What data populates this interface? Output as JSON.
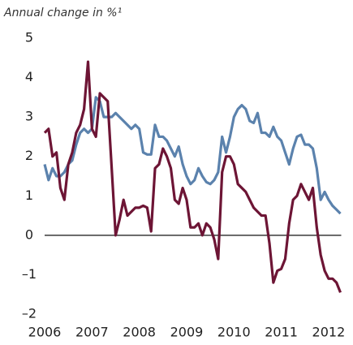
{
  "chart_data": {
    "type": "line",
    "title": "Annual change in %¹",
    "x": [
      2006,
      2006.083,
      2006.167,
      2006.25,
      2006.333,
      2006.417,
      2006.5,
      2006.583,
      2006.667,
      2006.75,
      2006.833,
      2006.917,
      2007,
      2007.083,
      2007.167,
      2007.25,
      2007.333,
      2007.417,
      2007.5,
      2007.583,
      2007.667,
      2007.75,
      2007.833,
      2007.917,
      2008,
      2008.083,
      2008.167,
      2008.25,
      2008.333,
      2008.417,
      2008.5,
      2008.583,
      2008.667,
      2008.75,
      2008.833,
      2008.917,
      2009,
      2009.083,
      2009.167,
      2009.25,
      2009.333,
      2009.417,
      2009.5,
      2009.583,
      2009.667,
      2009.75,
      2009.833,
      2009.917,
      2010,
      2010.083,
      2010.167,
      2010.25,
      2010.333,
      2010.417,
      2010.5,
      2010.583,
      2010.667,
      2010.75,
      2010.833,
      2010.917,
      2011,
      2011.083,
      2011.167,
      2011.25,
      2011.333,
      2011.417,
      2011.5,
      2011.583,
      2011.667,
      2011.75,
      2011.833,
      2011.917,
      2012,
      2012.083,
      2012.167,
      2012.25
    ],
    "series": [
      {
        "color": "#5b82ad",
        "values": [
          1.8,
          1.4,
          1.7,
          1.5,
          1.5,
          1.6,
          1.8,
          1.9,
          2.3,
          2.6,
          2.7,
          2.6,
          2.7,
          3.5,
          3.4,
          3.0,
          3.0,
          3.0,
          3.1,
          3.0,
          2.9,
          2.8,
          2.7,
          2.8,
          2.7,
          2.1,
          2.05,
          2.05,
          2.8,
          2.5,
          2.5,
          2.4,
          2.2,
          2.0,
          2.25,
          1.8,
          1.5,
          1.3,
          1.4,
          1.7,
          1.5,
          1.35,
          1.3,
          1.4,
          1.6,
          2.5,
          2.1,
          2.5,
          3.0,
          3.2,
          3.3,
          3.2,
          2.9,
          2.85,
          3.1,
          2.6,
          2.6,
          2.5,
          2.75,
          2.5,
          2.4,
          2.1,
          1.8,
          2.2,
          2.5,
          2.55,
          2.3,
          2.3,
          2.2,
          1.7,
          0.9,
          1.1,
          0.9,
          0.75,
          0.65,
          0.55
        ]
      },
      {
        "color": "#6d1535",
        "values": [
          2.6,
          2.7,
          2.0,
          2.1,
          1.2,
          0.9,
          1.8,
          2.1,
          2.6,
          2.8,
          3.2,
          4.4,
          2.7,
          2.5,
          3.6,
          3.5,
          3.4,
          1.7,
          0.0,
          0.4,
          0.9,
          0.5,
          0.6,
          0.7,
          0.7,
          0.75,
          0.7,
          0.1,
          1.7,
          1.8,
          2.2,
          2.0,
          1.7,
          0.9,
          0.8,
          1.2,
          0.9,
          0.2,
          0.2,
          0.3,
          0.0,
          0.3,
          0.2,
          -0.1,
          -0.6,
          1.6,
          2.0,
          2.0,
          1.8,
          1.3,
          1.2,
          1.1,
          0.9,
          0.7,
          0.6,
          0.5,
          0.5,
          -0.2,
          -1.2,
          -0.9,
          -0.85,
          -0.6,
          0.3,
          0.9,
          1.0,
          1.3,
          1.1,
          0.9,
          1.2,
          0.2,
          -0.5,
          -0.9,
          -1.1,
          -1.1,
          -1.2,
          -1.45
        ]
      }
    ],
    "xlim": [
      2006,
      2012.25
    ],
    "xticks": [
      2006,
      2007,
      2008,
      2009,
      2010,
      2011,
      2012
    ],
    "ylim": [
      -2,
      5
    ],
    "yticks": [
      {
        "value": -2,
        "label": "–2"
      },
      {
        "value": -1,
        "label": "–1"
      },
      0,
      1,
      2,
      3,
      4,
      5
    ],
    "grid": false
  }
}
